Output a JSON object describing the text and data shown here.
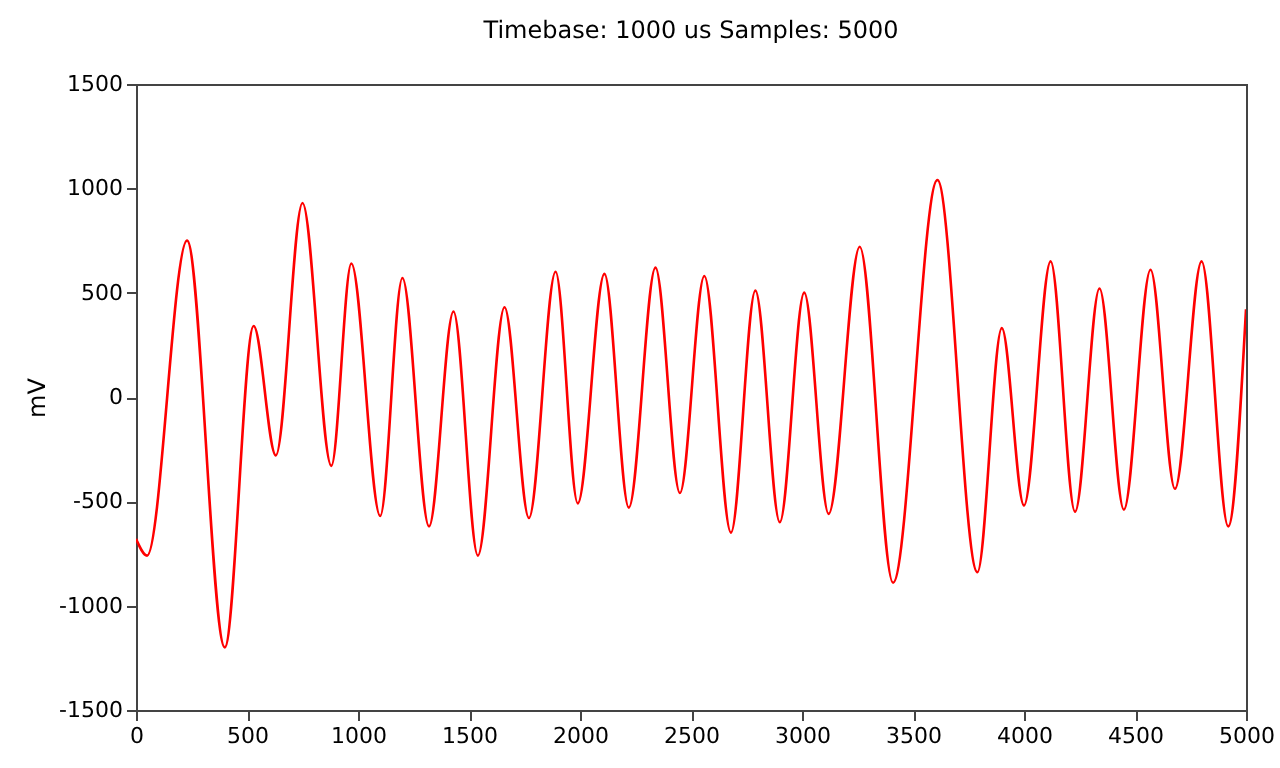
{
  "chart_data": {
    "type": "line",
    "title": "Timebase: 1000 us Samples: 5000",
    "ylabel": "mV",
    "x": [
      0,
      50,
      230,
      400,
      530,
      630,
      750,
      880,
      970,
      1100,
      1200,
      1320,
      1430,
      1540,
      1660,
      1770,
      1890,
      1990,
      2110,
      2220,
      2340,
      2450,
      2560,
      2680,
      2790,
      2900,
      3010,
      3120,
      3260,
      3410,
      3610,
      3790,
      3900,
      4000,
      4120,
      4230,
      4340,
      4450,
      4570,
      4680,
      4800,
      4920,
      5000
    ],
    "series": [
      {
        "color": "#ff0000",
        "values": [
          -680,
          -760,
          750,
          -1200,
          340,
          -280,
          930,
          -330,
          640,
          -570,
          570,
          -620,
          410,
          -760,
          430,
          -580,
          600,
          -510,
          590,
          -530,
          620,
          -460,
          580,
          -650,
          510,
          -600,
          500,
          -560,
          720,
          -890,
          1040,
          -840,
          330,
          -520,
          650,
          -550,
          520,
          -540,
          610,
          -440,
          650,
          -620,
          420
        ]
      }
    ],
    "xlim": [
      0,
      5000
    ],
    "xticks": [
      0,
      500,
      1000,
      1500,
      2000,
      2500,
      3000,
      3500,
      4000,
      4500,
      5000
    ],
    "ylim": [
      -1500,
      1500
    ],
    "yticks": [
      -1500,
      -1000,
      -500,
      0,
      500,
      1000,
      1500
    ],
    "grid": false,
    "marker": "none",
    "line_style": "solid"
  }
}
